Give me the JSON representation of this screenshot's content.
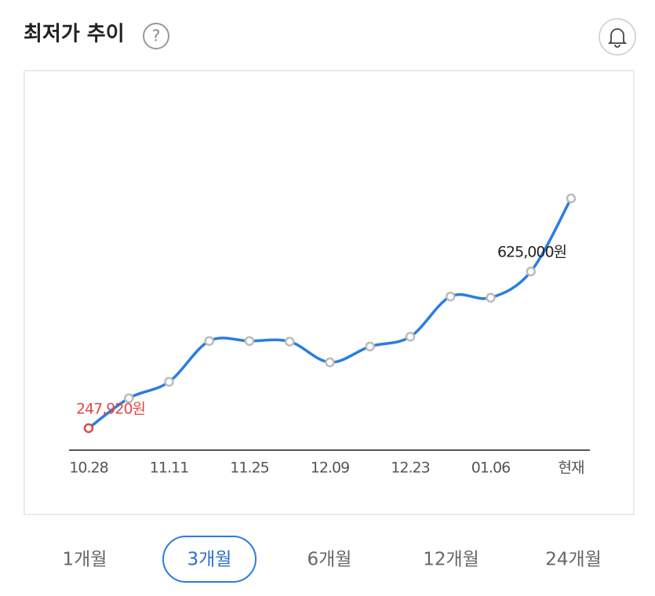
{
  "header": {
    "title": "최저가 추이",
    "help_icon": "?"
  },
  "chart_data": {
    "type": "line",
    "categories": [
      "10.28",
      null,
      "11.11",
      null,
      "11.25",
      null,
      "12.09",
      null,
      "12.23",
      null,
      "01.06",
      null,
      "현재"
    ],
    "series": [
      {
        "color": "#2b7de1",
        "values": [
          247920,
          297000,
          324000,
          391000,
          391000,
          390000,
          356000,
          382000,
          398000,
          464000,
          462000,
          505000,
          625000
        ],
        "value_labels": [
          "247,920원",
          null,
          null,
          null,
          null,
          null,
          null,
          null,
          null,
          null,
          null,
          null,
          "625,000원"
        ]
      }
    ],
    "min_label_color": "#e04848"
  },
  "tabs": {
    "items": [
      "1개월",
      "3개월",
      "6개월",
      "12개월",
      "24개월"
    ],
    "selected": 1
  }
}
